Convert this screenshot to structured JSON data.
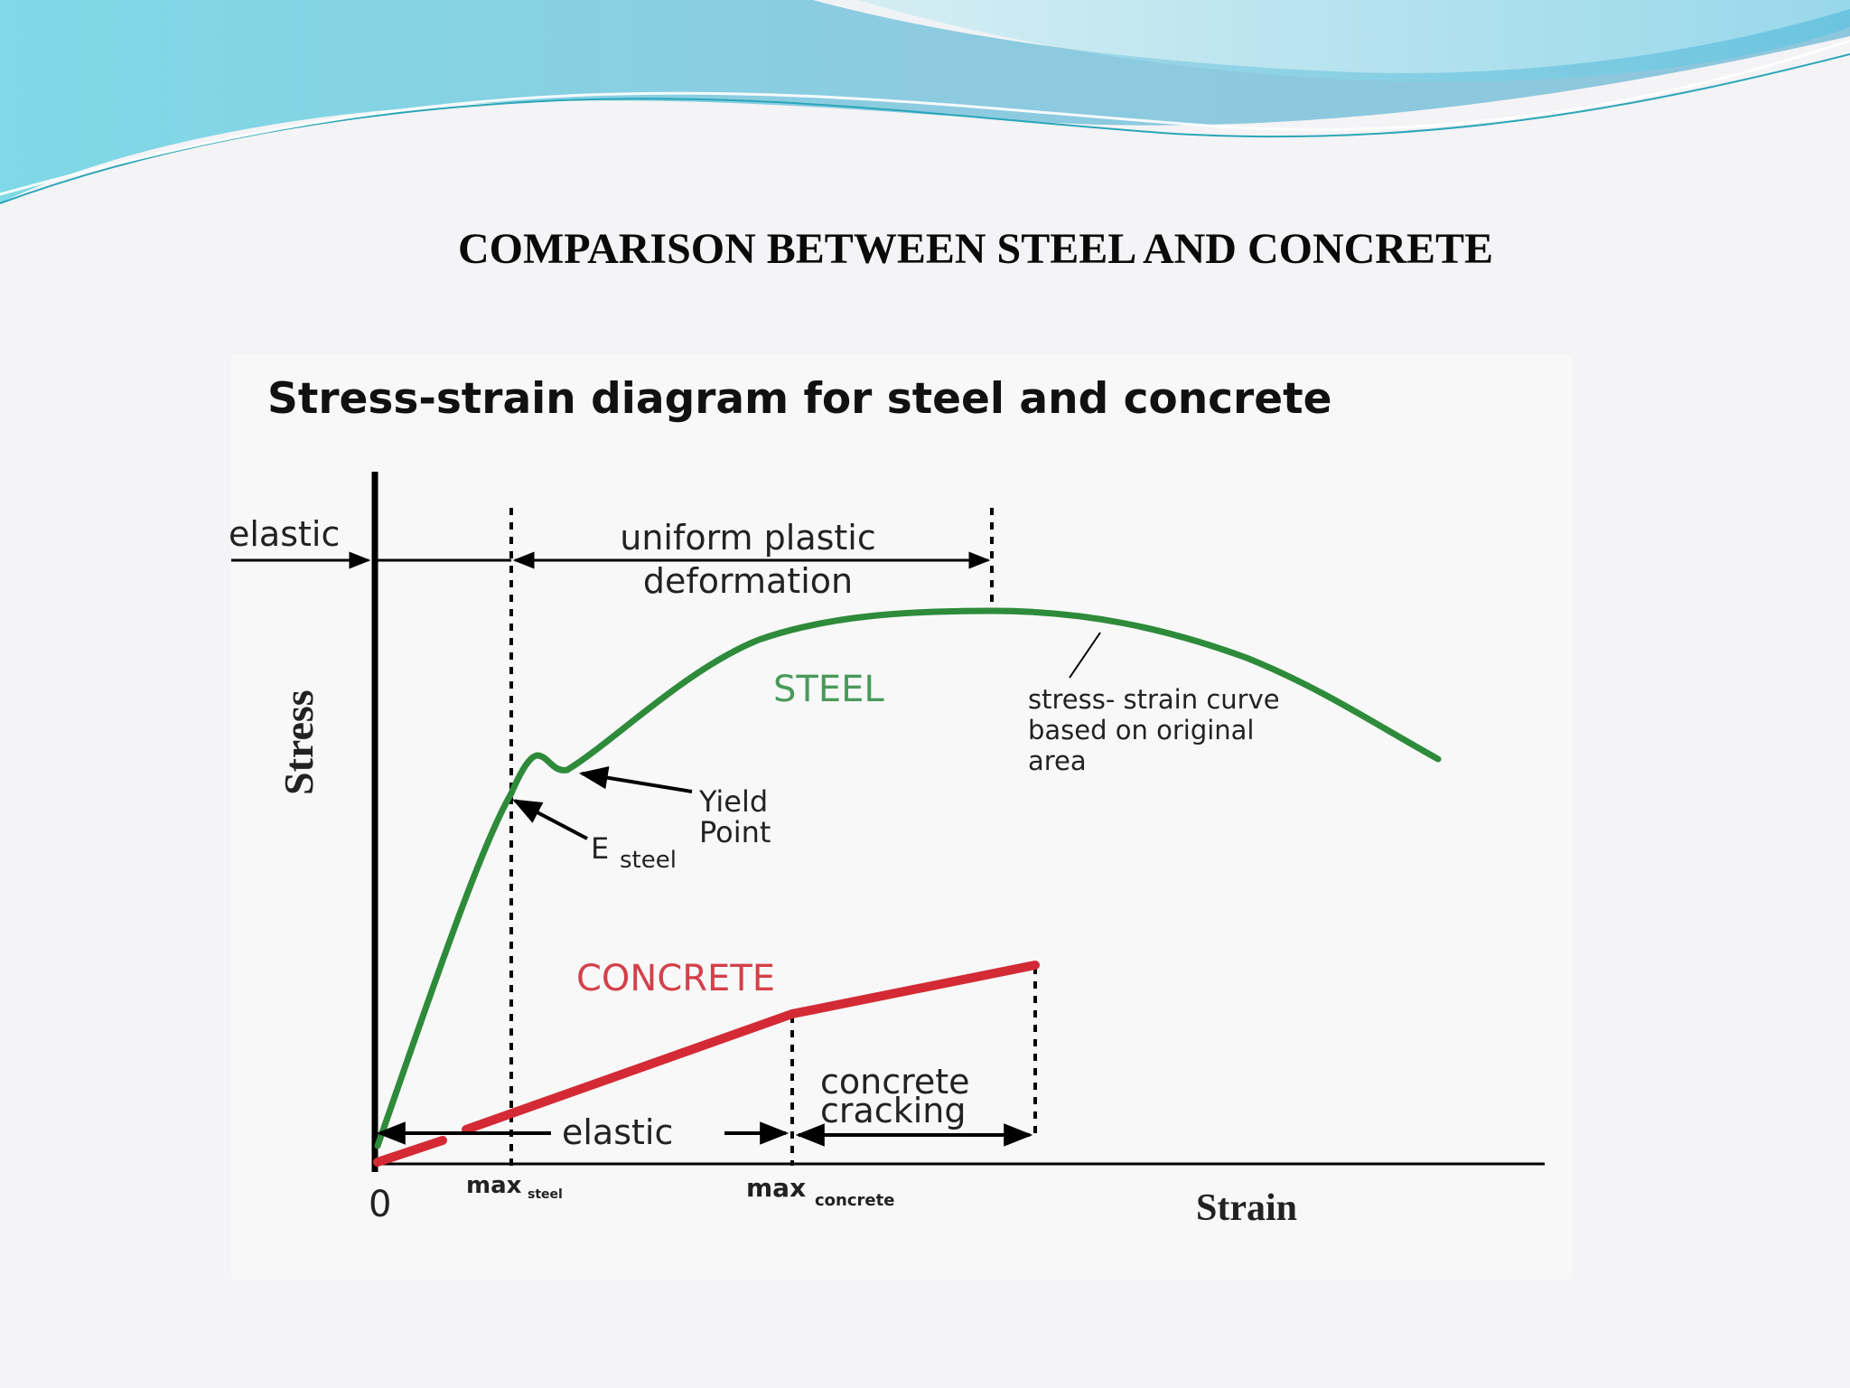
{
  "slide": {
    "title": "COMPARISON BETWEEN STEEL AND CONCRETE"
  },
  "diagram": {
    "title": "Stress-strain diagram for steel and concrete",
    "y_axis_label": "Stress",
    "x_axis_label": "Strain",
    "origin_label": "0",
    "regions": {
      "elastic_top": "elastic",
      "uniform_plastic_line1": "uniform plastic",
      "uniform_plastic_line2": "deformation",
      "elastic_bottom": "elastic",
      "concrete_cracking_line1": "concrete",
      "concrete_cracking_line2": "cracking"
    },
    "curves": {
      "steel": {
        "label": "STEEL",
        "color": "#2e8b3a"
      },
      "concrete": {
        "label": "CONCRETE",
        "color": "#d42a35"
      }
    },
    "annotations": {
      "yield_line1": "Yield",
      "yield_line2": "Point",
      "e_steel_main": "E",
      "e_steel_sub": "steel",
      "curve_note_line1": "stress- strain curve",
      "curve_note_line2": "based on original",
      "curve_note_line3": "area"
    },
    "x_ticks": {
      "max_steel_main": "max",
      "max_steel_sub": "steel",
      "max_concrete_main": "max",
      "max_concrete_sub": "concrete"
    }
  }
}
